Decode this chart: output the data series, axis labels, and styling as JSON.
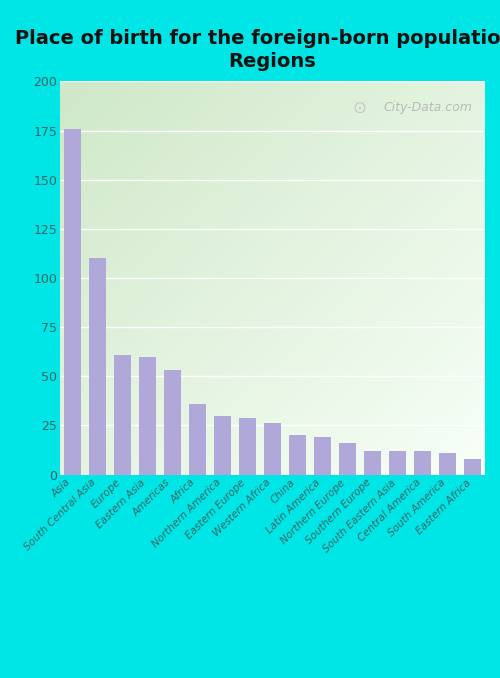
{
  "title": "Place of birth for the foreign-born population -\nRegions",
  "categories": [
    "Asia",
    "South Central Asia",
    "Europe",
    "Eastern Asia",
    "Americas",
    "Africa",
    "Northern America",
    "Eastern Europe",
    "Western Africa",
    "China",
    "Latin America",
    "Northern Europe",
    "Southern Europe",
    "South Eastern Asia",
    "Central America",
    "South America",
    "Eastern Africa"
  ],
  "values": [
    176,
    110,
    61,
    60,
    53,
    36,
    30,
    29,
    26,
    20,
    19,
    16,
    12,
    12,
    12,
    11,
    8
  ],
  "bar_color": "#b0a8d8",
  "background_color": "#00e5e5",
  "plot_bg_left_top": "#cfe8c8",
  "plot_bg_right_bottom": "#f8fff8",
  "ylim": [
    0,
    200
  ],
  "yticks": [
    0,
    25,
    50,
    75,
    100,
    125,
    150,
    175,
    200
  ],
  "title_fontsize": 14,
  "tick_color": "#336666",
  "ylabel_color": "#555555",
  "watermark": "City-Data.com",
  "grid_color": "#ddeecc"
}
